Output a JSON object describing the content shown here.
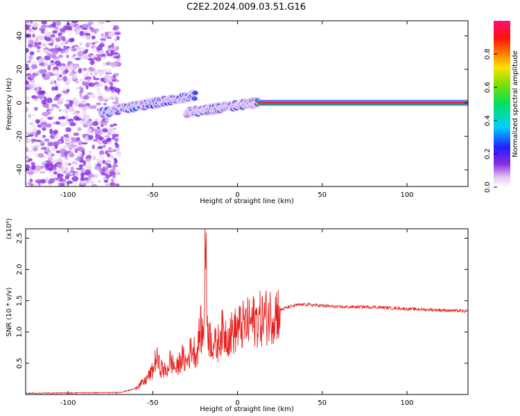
{
  "title": "C2E2.2024.009.03.51.G16",
  "colors": {
    "snr_line": "#e8201e",
    "axis": "#000000",
    "background": "#ffffff"
  },
  "chart_data": [
    {
      "type": "heatmap",
      "xlabel": "Height of straight line (km)",
      "ylabel": "Frequency (Hz)",
      "xlim": [
        -125,
        136
      ],
      "ylim": [
        -50,
        49
      ],
      "xticks": [
        "-100",
        "-50",
        "0",
        "50",
        "100"
      ],
      "xtick_values": [
        -100,
        -50,
        0,
        50,
        100
      ],
      "yticks": [
        "40",
        "20",
        "0",
        "-20",
        "-40"
      ],
      "ytick_values": [
        40,
        20,
        0,
        -20,
        -40
      ],
      "colorbar": {
        "label": "Normalized spectral amplitude",
        "range": [
          0,
          1
        ],
        "ticks": [
          "0.0",
          "0.2",
          "0.4",
          "0.6",
          "0.8"
        ],
        "tick_values": [
          0.0,
          0.2,
          0.4,
          0.6,
          0.8
        ],
        "colormap": "rainbow (white-purple-blue-cyan-green-yellow-orange-red-magenta)"
      },
      "features": [
        {
          "name": "noise",
          "x_range": [
            -125,
            -70
          ],
          "freq_range": [
            -50,
            49
          ],
          "amplitude": 0.1
        },
        {
          "name": "ridge",
          "x_range": [
            -80,
            -25
          ],
          "freq_range": [
            -6,
            9
          ],
          "amplitude": 0.4
        },
        {
          "name": "ridge",
          "x_range": [
            -30,
            12
          ],
          "freq_range": [
            -6,
            3
          ],
          "amplitude": 0.6
        },
        {
          "name": "carrier",
          "x_range": [
            12,
            136
          ],
          "freq": 0,
          "amplitude": 0.95
        }
      ]
    },
    {
      "type": "line",
      "xlabel": "Height of straight line (km)",
      "ylabel": "SNR (10 * v/v)",
      "y_multiplier": "(x10⁴)",
      "xlim": [
        -125,
        136
      ],
      "ylim": [
        0,
        2.65
      ],
      "xticks": [
        "-100",
        "-50",
        "0",
        "50",
        "100"
      ],
      "xtick_values": [
        -100,
        -50,
        0,
        50,
        100
      ],
      "yticks": [
        "2.5",
        "2.0",
        "1.5",
        "1.0",
        "0.5"
      ],
      "ytick_values": [
        2.5,
        2.0,
        1.5,
        1.0,
        0.5
      ],
      "series": [
        {
          "x": [
            -125,
            -70,
            -62,
            -55,
            -50,
            -48,
            -46,
            -42,
            -40,
            -36,
            -33,
            -30,
            -27,
            -24,
            -22,
            -20,
            -19,
            -18,
            -17,
            -15,
            -12,
            -10,
            -5,
            0,
            5,
            10,
            15,
            20,
            25,
            30,
            35,
            40,
            50,
            60,
            80,
            100,
            120,
            136
          ],
          "y": [
            0.02,
            0.03,
            0.08,
            0.2,
            0.38,
            0.6,
            0.45,
            0.35,
            0.55,
            0.4,
            0.6,
            0.5,
            0.75,
            0.65,
            1.05,
            0.9,
            2.62,
            1.3,
            0.95,
            0.85,
            0.75,
            1.0,
            0.95,
            1.05,
            1.12,
            1.18,
            1.22,
            1.28,
            1.35,
            1.4,
            1.43,
            1.44,
            1.42,
            1.4,
            1.4,
            1.37,
            1.35,
            1.33
          ]
        }
      ]
    }
  ]
}
